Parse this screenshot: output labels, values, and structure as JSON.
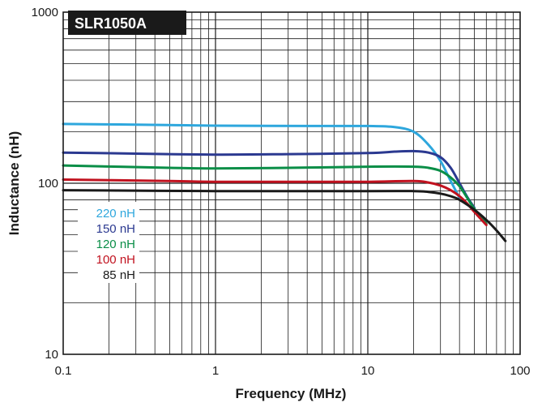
{
  "chart_data": {
    "type": "line",
    "title": "SLR1050A",
    "xlabel": "Frequency (MHz)",
    "ylabel": "Inductance (nH)",
    "x_scale": "log",
    "y_scale": "log",
    "xlim": [
      0.1,
      100
    ],
    "ylim": [
      10,
      1000
    ],
    "x_tick_labels": [
      "0.1",
      "1",
      "10",
      "100"
    ],
    "y_tick_labels": [
      "10",
      "100",
      "1000"
    ],
    "grid": true,
    "legend_position": "left",
    "series": [
      {
        "name": "220 nH",
        "color": "#2ea7dd",
        "x": [
          0.1,
          0.5,
          1,
          5,
          10,
          15,
          20,
          25,
          30,
          35,
          40
        ],
        "y": [
          222,
          219,
          217,
          216,
          216,
          213,
          200,
          168,
          135,
          103,
          82
        ]
      },
      {
        "name": "150 nH",
        "color": "#2b3990",
        "x": [
          0.1,
          0.3,
          1,
          3,
          10,
          15,
          20,
          25,
          30,
          35,
          40,
          45,
          50
        ],
        "y": [
          151,
          149,
          147,
          148,
          150,
          153,
          154,
          151,
          142,
          123,
          100,
          83,
          72
        ]
      },
      {
        "name": "120 nH",
        "color": "#0a8e47",
        "x": [
          0.1,
          0.5,
          1,
          3,
          10,
          20,
          25,
          30,
          35,
          40,
          45,
          50,
          60
        ],
        "y": [
          127,
          123,
          122,
          123,
          125,
          125,
          123,
          118,
          108,
          96,
          82,
          71,
          58
        ]
      },
      {
        "name": "100 nH",
        "color": "#c1121f",
        "x": [
          0.1,
          0.5,
          1,
          5,
          10,
          20,
          25,
          30,
          35,
          40,
          45,
          50,
          60
        ],
        "y": [
          105,
          103,
          102,
          102,
          102,
          103,
          101,
          97,
          91,
          84,
          76,
          68,
          57
        ]
      },
      {
        "name": "85 nH",
        "color": "#1a1a1a",
        "x": [
          0.1,
          1,
          10,
          20,
          25,
          30,
          35,
          40,
          50,
          60,
          70,
          80
        ],
        "y": [
          91,
          90,
          90,
          90,
          89,
          87,
          84,
          80,
          70,
          61,
          53,
          46
        ]
      }
    ]
  }
}
